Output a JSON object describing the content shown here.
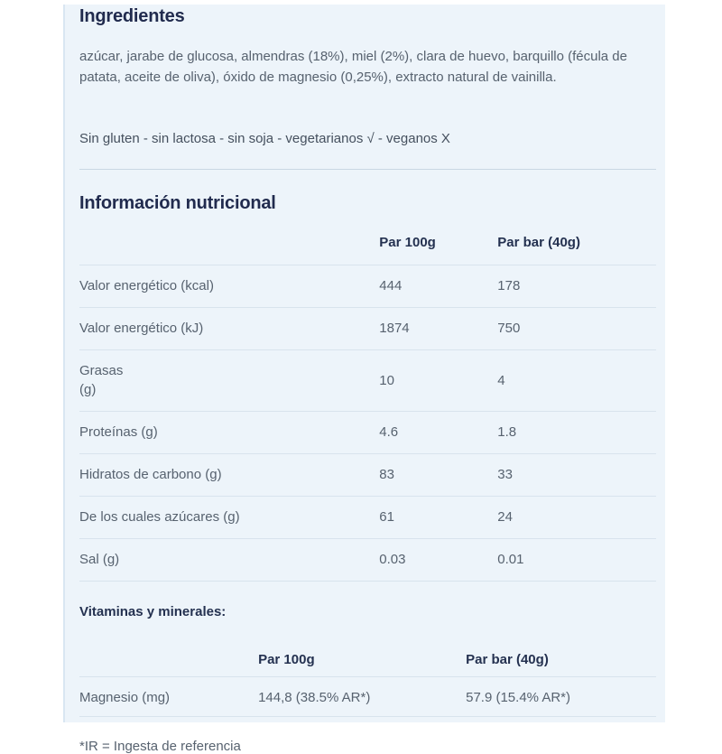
{
  "theme": {
    "panel_background": "#edf4fa",
    "panel_border": "#d9e6f2",
    "heading_color": "#212b4e",
    "body_text_color": "#57626f",
    "table_border_color": "#d8e3ed"
  },
  "ingredients": {
    "title": "Ingredientes",
    "description": "azúcar, jarabe de glucosa, almendras (18%), miel (2%), clara de huevo, barquillo (fécula de patata, aceite de oliva), óxido de magnesio (0,25%), extracto natural de vainilla.",
    "dietary_info": "Sin gluten - sin lactosa - sin soja - vegetarianos √ - veganos X"
  },
  "nutrition": {
    "title": "Información nutricional",
    "table": {
      "headers": [
        "",
        "Par 100g",
        "Par bar (40g)"
      ],
      "rows": [
        {
          "label": "Valor energético (kcal)",
          "per_100g": "444",
          "per_bar": "178"
        },
        {
          "label": "Valor energético (kJ)",
          "per_100g": "1874",
          "per_bar": "750"
        },
        {
          "label": "Grasas\n(g)",
          "per_100g": "10",
          "per_bar": "4"
        },
        {
          "label": "Proteínas (g)",
          "per_100g": "4.6",
          "per_bar": "1.8"
        },
        {
          "label": "Hidratos de carbono (g)",
          "per_100g": "83",
          "per_bar": "33"
        },
        {
          "label": "De los cuales azúcares (g)",
          "per_100g": "61",
          "per_bar": "24"
        },
        {
          "label": "Sal (g)",
          "per_100g": "0.03",
          "per_bar": "0.01"
        }
      ]
    },
    "vitamins_label": "Vitaminas y minerales:",
    "vitamins_table": {
      "headers": [
        "",
        "Par 100g",
        "Par bar (40g)"
      ],
      "rows": [
        {
          "label": "Magnesio (mg)",
          "per_100g": "144,8 (38.5% AR*)",
          "per_bar": "57.9 (15.4% AR*)"
        }
      ]
    },
    "footnote": "*IR = Ingesta de referencia"
  }
}
